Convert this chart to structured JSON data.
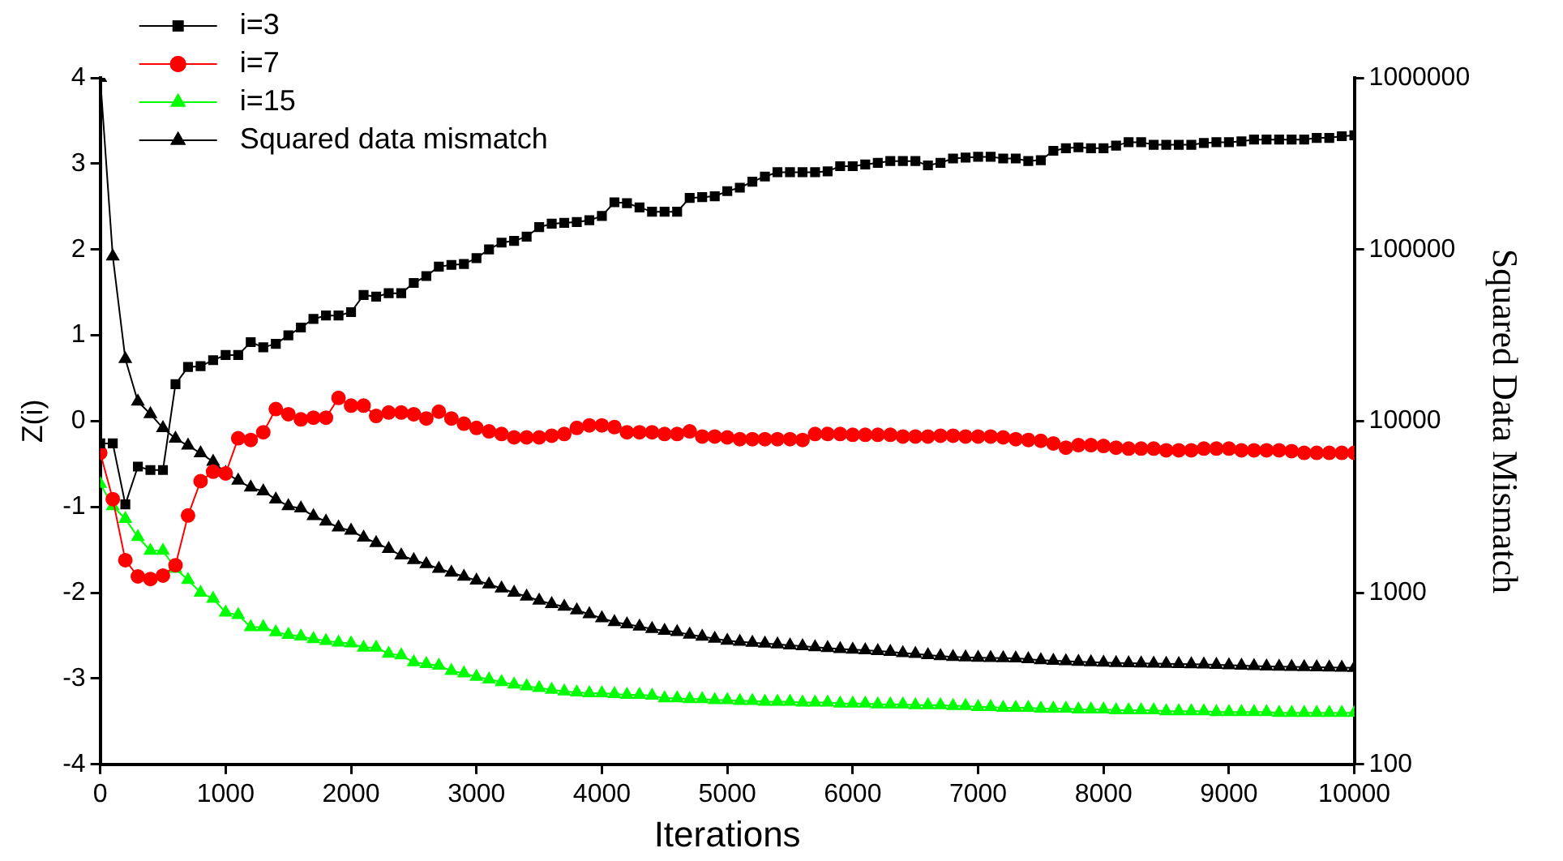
{
  "chart_data": {
    "type": "line",
    "xlabel": "Iterations",
    "ylabel": "Z(i)",
    "y2label": "Squared Data Mismatch",
    "x": [
      0,
      100,
      200,
      300,
      400,
      500,
      600,
      700,
      800,
      900,
      1000,
      1100,
      1200,
      1300,
      1400,
      1500,
      1600,
      1700,
      1800,
      1900,
      2000,
      2100,
      2200,
      2300,
      2400,
      2500,
      2600,
      2700,
      2800,
      2900,
      3000,
      3100,
      3200,
      3300,
      3400,
      3500,
      3600,
      3700,
      3800,
      3900,
      4000,
      4100,
      4200,
      4300,
      4400,
      4500,
      4600,
      4700,
      4800,
      4900,
      5000,
      5100,
      5200,
      5300,
      5400,
      5500,
      5600,
      5700,
      5800,
      5900,
      6000,
      6100,
      6200,
      6300,
      6400,
      6500,
      6600,
      6700,
      6800,
      6900,
      7000,
      7100,
      7200,
      7300,
      7400,
      7500,
      7600,
      7700,
      7800,
      7900,
      8000,
      8100,
      8200,
      8300,
      8400,
      8500,
      8600,
      8700,
      8800,
      8900,
      9000,
      9100,
      9200,
      9300,
      9400,
      9500,
      9600,
      9700,
      9800,
      9900,
      10000
    ],
    "xlim": [
      0,
      10000
    ],
    "xticks": [
      0,
      1000,
      2000,
      3000,
      4000,
      5000,
      6000,
      7000,
      8000,
      9000,
      10000
    ],
    "ylim": [
      -4,
      4
    ],
    "yticks": [
      -4,
      -3,
      -2,
      -1,
      0,
      1,
      2,
      3,
      4
    ],
    "y2lim": [
      100,
      1000000
    ],
    "y2ticks": [
      100,
      1000,
      10000,
      100000,
      1000000
    ],
    "log": "y2",
    "legend": "top left",
    "grid": false,
    "line_style": "solid",
    "series": [
      {
        "name": "i=3",
        "color": "#000000",
        "marker": "square",
        "values": [
          -0.26,
          -0.26,
          -0.97,
          -0.53,
          -0.57,
          -0.57,
          0.43,
          0.63,
          0.64,
          0.71,
          0.77,
          0.77,
          0.92,
          0.86,
          0.9,
          1.0,
          1.09,
          1.19,
          1.23,
          1.23,
          1.27,
          1.47,
          1.45,
          1.49,
          1.49,
          1.61,
          1.69,
          1.8,
          1.82,
          1.83,
          1.9,
          2.0,
          2.08,
          2.1,
          2.15,
          2.26,
          2.3,
          2.31,
          2.32,
          2.34,
          2.39,
          2.55,
          2.54,
          2.49,
          2.44,
          2.44,
          2.44,
          2.6,
          2.61,
          2.62,
          2.68,
          2.72,
          2.79,
          2.85,
          2.9,
          2.9,
          2.9,
          2.9,
          2.91,
          2.97,
          2.97,
          2.99,
          3.01,
          3.03,
          3.03,
          3.03,
          2.98,
          3.01,
          3.06,
          3.07,
          3.08,
          3.08,
          3.06,
          3.06,
          3.03,
          3.04,
          3.15,
          3.18,
          3.19,
          3.18,
          3.18,
          3.21,
          3.25,
          3.25,
          3.22,
          3.22,
          3.22,
          3.22,
          3.24,
          3.25,
          3.25,
          3.26,
          3.28,
          3.28,
          3.28,
          3.28,
          3.28,
          3.3,
          3.3,
          3.32,
          3.33
        ]
      },
      {
        "name": "i=7",
        "color": "#ff0000",
        "marker": "circle",
        "values": [
          -0.37,
          -0.91,
          -1.62,
          -1.81,
          -1.84,
          -1.8,
          -1.68,
          -1.1,
          -0.7,
          -0.59,
          -0.61,
          -0.2,
          -0.22,
          -0.13,
          0.14,
          0.08,
          0.02,
          0.04,
          0.04,
          0.27,
          0.18,
          0.18,
          0.06,
          0.1,
          0.1,
          0.08,
          0.03,
          0.11,
          0.03,
          -0.03,
          -0.08,
          -0.12,
          -0.15,
          -0.19,
          -0.19,
          -0.19,
          -0.17,
          -0.15,
          -0.08,
          -0.05,
          -0.05,
          -0.07,
          -0.13,
          -0.13,
          -0.13,
          -0.15,
          -0.15,
          -0.12,
          -0.18,
          -0.18,
          -0.19,
          -0.21,
          -0.21,
          -0.21,
          -0.21,
          -0.21,
          -0.22,
          -0.15,
          -0.15,
          -0.15,
          -0.16,
          -0.16,
          -0.16,
          -0.16,
          -0.18,
          -0.18,
          -0.18,
          -0.17,
          -0.17,
          -0.18,
          -0.18,
          -0.18,
          -0.19,
          -0.21,
          -0.22,
          -0.23,
          -0.26,
          -0.31,
          -0.28,
          -0.28,
          -0.29,
          -0.31,
          -0.32,
          -0.32,
          -0.32,
          -0.34,
          -0.34,
          -0.34,
          -0.32,
          -0.32,
          -0.32,
          -0.34,
          -0.34,
          -0.34,
          -0.34,
          -0.35,
          -0.37,
          -0.37,
          -0.37,
          -0.37,
          -0.37
        ]
      },
      {
        "name": "i=15",
        "color": "#00ff00",
        "marker": "triangle",
        "values": [
          -0.73,
          -0.99,
          -1.14,
          -1.35,
          -1.51,
          -1.51,
          -1.72,
          -1.85,
          -2.0,
          -2.07,
          -2.23,
          -2.26,
          -2.4,
          -2.4,
          -2.46,
          -2.49,
          -2.51,
          -2.54,
          -2.56,
          -2.58,
          -2.59,
          -2.64,
          -2.64,
          -2.71,
          -2.73,
          -2.81,
          -2.83,
          -2.85,
          -2.91,
          -2.94,
          -2.98,
          -3.01,
          -3.04,
          -3.07,
          -3.09,
          -3.11,
          -3.13,
          -3.15,
          -3.16,
          -3.17,
          -3.17,
          -3.18,
          -3.19,
          -3.19,
          -3.2,
          -3.23,
          -3.23,
          -3.24,
          -3.24,
          -3.25,
          -3.25,
          -3.26,
          -3.26,
          -3.27,
          -3.27,
          -3.27,
          -3.28,
          -3.28,
          -3.28,
          -3.29,
          -3.29,
          -3.29,
          -3.3,
          -3.3,
          -3.3,
          -3.31,
          -3.31,
          -3.31,
          -3.32,
          -3.32,
          -3.33,
          -3.33,
          -3.34,
          -3.34,
          -3.34,
          -3.35,
          -3.35,
          -3.35,
          -3.36,
          -3.36,
          -3.36,
          -3.37,
          -3.37,
          -3.37,
          -3.37,
          -3.38,
          -3.38,
          -3.38,
          -3.38,
          -3.39,
          -3.39,
          -3.39,
          -3.39,
          -3.39,
          -3.4,
          -3.4,
          -3.4,
          -3.4,
          -3.4,
          -3.4,
          -3.4
        ]
      },
      {
        "name": "Squared data mismatch",
        "color": "#000000",
        "marker": "triangle",
        "axis": "y2",
        "values": [
          1000000,
          91000,
          23000,
          13000,
          11000,
          9100,
          7900,
          7200,
          6500,
          5800,
          5000,
          4500,
          4100,
          3900,
          3500,
          3200,
          3100,
          2800,
          2600,
          2400,
          2300,
          2100,
          1950,
          1800,
          1650,
          1550,
          1470,
          1380,
          1310,
          1240,
          1180,
          1120,
          1060,
          1000,
          950,
          900,
          860,
          830,
          790,
          750,
          710,
          675,
          655,
          635,
          615,
          600,
          590,
          570,
          555,
          540,
          525,
          518,
          512,
          506,
          500,
          494,
          488,
          482,
          476,
          470,
          466,
          462,
          458,
          452,
          445,
          440,
          433,
          427,
          423,
          420,
          418,
          417,
          416,
          415,
          410,
          405,
          402,
          399,
          396,
          394,
          392,
          390,
          389,
          388,
          386,
          385,
          384,
          383,
          382,
          380,
          378,
          376,
          374,
          372,
          371,
          370,
          369,
          368,
          367,
          366,
          365
        ]
      }
    ]
  }
}
